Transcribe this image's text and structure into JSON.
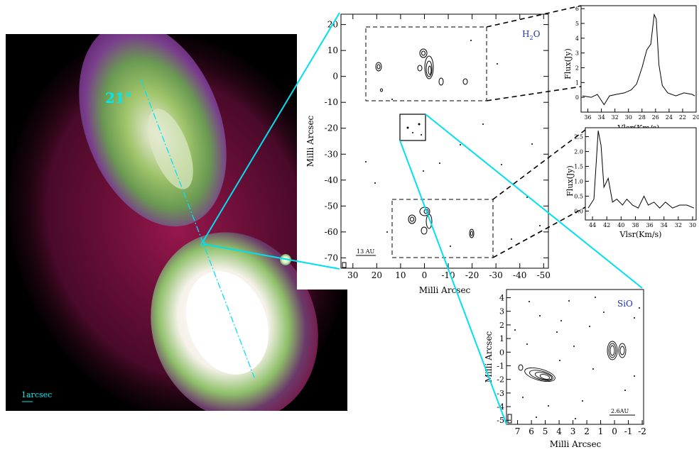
{
  "nebula": {
    "angle_label": "21°",
    "scale_label": "1arcsec"
  },
  "water_map": {
    "species_main": "H",
    "species_sub": "2",
    "species_tail": "O",
    "x_ticks": [
      "30",
      "20",
      "10",
      "0",
      "-10",
      "-20",
      "-30",
      "-40",
      "-50"
    ],
    "y_ticks": [
      "20",
      "10",
      "0",
      "-10",
      "-20",
      "-30",
      "-40",
      "-50",
      "-60",
      "-70"
    ],
    "xlabel": "Milli Arcsec",
    "ylabel": "Milli Arcsec",
    "scale_label": "13 AU"
  },
  "spectrum_top": {
    "x_ticks": [
      "36",
      "34",
      "32",
      "30",
      "28",
      "26",
      "24",
      "22",
      "20"
    ],
    "y_ticks": [
      "6",
      "5",
      "4",
      "3",
      "2",
      "1",
      "0"
    ],
    "xlabel": "Vlsr(Km/s)",
    "ylabel": "Flux(Jy)"
  },
  "spectrum_bottom": {
    "x_ticks": [
      "44",
      "42",
      "40",
      "38",
      "36",
      "34",
      "32",
      "30"
    ],
    "y_ticks": [
      "2.5",
      "2.0",
      "1.5",
      "1.0",
      "0.5",
      "0.0"
    ],
    "xlabel": "Vlsr(Km/s)",
    "ylabel": "Flux(Jy)"
  },
  "sio_map": {
    "species": "SiO",
    "x_ticks": [
      "7",
      "6",
      "5",
      "4",
      "3",
      "2",
      "1",
      "0",
      "-1",
      "-2"
    ],
    "y_ticks": [
      "4",
      "3",
      "2",
      "1",
      "0",
      "-1",
      "-2",
      "-3",
      "-4",
      "-5"
    ],
    "xlabel": "Milli Arcsec",
    "ylabel": "Milli Arcsec",
    "scale_label": "2.6AU"
  }
}
